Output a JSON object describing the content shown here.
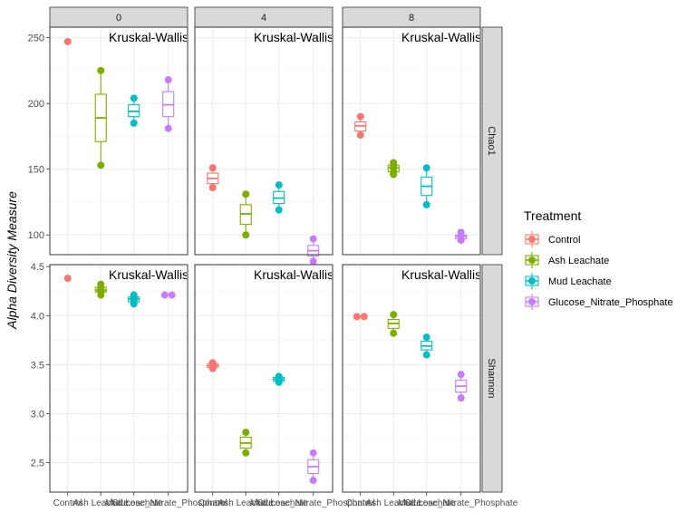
{
  "chart_data": {
    "type": "boxplot-faceted",
    "ylabel": "Alpha Diversity Measure",
    "annotation": "Kruskal-Wallis",
    "facet_cols": [
      "0",
      "4",
      "8"
    ],
    "facet_rows": [
      "Chao1",
      "Shannon"
    ],
    "categories": [
      "Control",
      "Ash Leachate",
      "Mud Leachate",
      "Glucose_Nitrate_Phosphate"
    ],
    "legend": {
      "title": "Treatment",
      "position": "right",
      "items": [
        "Control",
        "Ash Leachate",
        "Mud Leachate",
        "Glucose_Nitrate_Phosphate"
      ]
    },
    "colors": {
      "Control": "#F8766D",
      "Ash Leachate": "#7CAE00",
      "Mud Leachate": "#00BFC4",
      "Glucose_Nitrate_Phosphate": "#C77CFF"
    },
    "y_axes": {
      "Chao1": {
        "ylim": [
          85,
          258
        ],
        "ticks": [
          "100",
          "150",
          "200",
          "250"
        ],
        "tick_values": [
          100,
          150,
          200,
          250
        ]
      },
      "Shannon": {
        "ylim": [
          2.2,
          4.52
        ],
        "ticks": [
          "2.5",
          "3.0",
          "3.5",
          "4.0",
          "4.5"
        ],
        "tick_values": [
          2.5,
          3.0,
          3.5,
          4.0,
          4.5
        ]
      }
    },
    "panels": [
      {
        "row": "Chao1",
        "col": "0",
        "groups": [
          {
            "category": "Control",
            "points": [
              247
            ],
            "box": null
          },
          {
            "category": "Ash Leachate",
            "points": [
              225,
              153
            ],
            "box": [
              153,
              171,
              189,
              207,
              225
            ]
          },
          {
            "category": "Mud Leachate",
            "points": [
              204,
              185
            ],
            "box": [
              185,
              190,
              194,
              199,
              204
            ]
          },
          {
            "category": "Glucose_Nitrate_Phosphate",
            "points": [
              218,
              181
            ],
            "box": [
              181,
              190,
              199,
              209,
              218
            ]
          }
        ]
      },
      {
        "row": "Chao1",
        "col": "4",
        "groups": [
          {
            "category": "Control",
            "points": [
              151,
              136
            ],
            "box": [
              136,
              139,
              143,
              147,
              151
            ]
          },
          {
            "category": "Ash Leachate",
            "points": [
              131,
              100
            ],
            "box": [
              100,
              108,
              116,
              123,
              131
            ]
          },
          {
            "category": "Mud Leachate",
            "points": [
              138,
              119
            ],
            "box": [
              119,
              124,
              128,
              133,
              138
            ]
          },
          {
            "category": "Glucose_Nitrate_Phosphate",
            "points": [
              97,
              80
            ],
            "box": [
              80,
              84,
              88,
              92,
              97
            ]
          }
        ]
      },
      {
        "row": "Chao1",
        "col": "8",
        "groups": [
          {
            "category": "Control",
            "points": [
              190,
              176
            ],
            "box": [
              176,
              179,
              183,
              186,
              190
            ]
          },
          {
            "category": "Ash Leachate",
            "points": [
              155,
              153,
              151,
              148,
              146
            ],
            "box": [
              146,
              148,
              151,
              153,
              155
            ]
          },
          {
            "category": "Mud Leachate",
            "points": [
              151,
              123
            ],
            "box": [
              123,
              130,
              137,
              144,
              151
            ]
          },
          {
            "category": "Glucose_Nitrate_Phosphate",
            "points": [
              102,
              99,
              96
            ],
            "box": [
              96,
              97,
              99,
              100,
              102
            ]
          }
        ]
      },
      {
        "row": "Shannon",
        "col": "0",
        "groups": [
          {
            "category": "Control",
            "points": [
              4.38
            ],
            "box": null
          },
          {
            "category": "Ash Leachate",
            "points": [
              4.32,
              4.28,
              4.25,
              4.21
            ],
            "box": [
              4.21,
              4.24,
              4.26,
              4.29,
              4.32
            ]
          },
          {
            "category": "Mud Leachate",
            "points": [
              4.21,
              4.18,
              4.15,
              4.12
            ],
            "box": [
              4.12,
              4.14,
              4.17,
              4.19,
              4.21
            ]
          },
          {
            "category": "Glucose_Nitrate_Phosphate",
            "points": [
              4.21,
              4.21
            ],
            "box": null
          }
        ]
      },
      {
        "row": "Shannon",
        "col": "4",
        "groups": [
          {
            "category": "Control",
            "points": [
              3.52,
              3.5,
              3.48,
              3.46
            ],
            "box": [
              3.46,
              3.47,
              3.49,
              3.51,
              3.52
            ]
          },
          {
            "category": "Ash Leachate",
            "points": [
              2.81,
              2.6
            ],
            "box": [
              2.6,
              2.65,
              2.7,
              2.76,
              2.81
            ]
          },
          {
            "category": "Mud Leachate",
            "points": [
              3.38,
              3.36,
              3.34,
              3.32
            ],
            "box": [
              3.32,
              3.33,
              3.35,
              3.37,
              3.38
            ]
          },
          {
            "category": "Glucose_Nitrate_Phosphate",
            "points": [
              2.6,
              2.32
            ],
            "box": [
              2.32,
              2.39,
              2.46,
              2.53,
              2.6
            ]
          }
        ]
      },
      {
        "row": "Shannon",
        "col": "8",
        "groups": [
          {
            "category": "Control",
            "points": [
              3.99,
              3.99
            ],
            "box": null
          },
          {
            "category": "Ash Leachate",
            "points": [
              4.01,
              3.82
            ],
            "box": [
              3.82,
              3.87,
              3.92,
              3.96,
              4.01
            ]
          },
          {
            "category": "Mud Leachate",
            "points": [
              3.78,
              3.6
            ],
            "box": [
              3.6,
              3.65,
              3.69,
              3.74,
              3.78
            ]
          },
          {
            "category": "Glucose_Nitrate_Phosphate",
            "points": [
              3.4,
              3.16
            ],
            "box": [
              3.16,
              3.22,
              3.28,
              3.34,
              3.4
            ]
          }
        ]
      }
    ]
  }
}
